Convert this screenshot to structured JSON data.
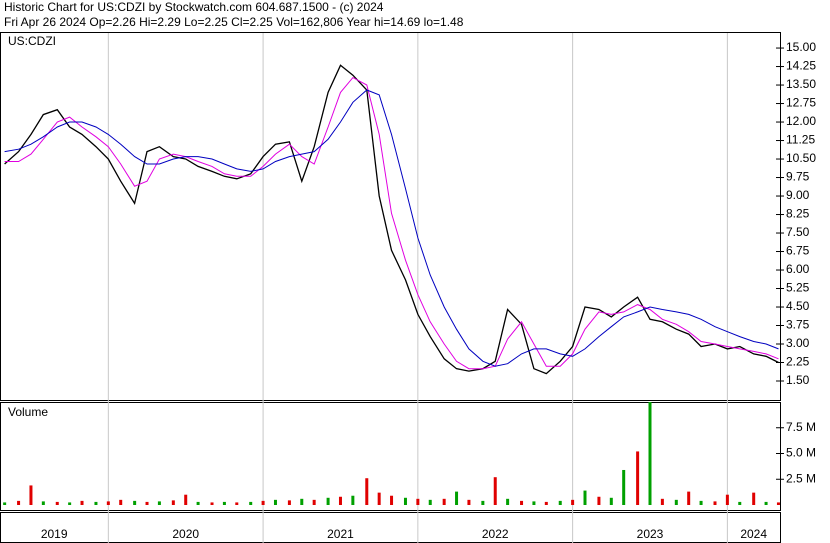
{
  "header": {
    "title": "Historic Chart for US:CDZI by Stockwatch.com 604.687.1500 - (c) 2024",
    "quote": "Fri Apr 26 2024   Op=2.26   Hi=2.29   Lo=2.25   Cl=2.25   Vol=162,806   Year hi=14.69   lo=1.48"
  },
  "chart_data": [
    {
      "type": "line",
      "title": "US:CDZI",
      "x": [
        2019.33,
        2019.42,
        2019.5,
        2019.58,
        2019.67,
        2019.75,
        2019.83,
        2019.92,
        2020.0,
        2020.08,
        2020.17,
        2020.25,
        2020.33,
        2020.42,
        2020.5,
        2020.58,
        2020.67,
        2020.75,
        2020.83,
        2020.92,
        2021.0,
        2021.08,
        2021.17,
        2021.25,
        2021.33,
        2021.42,
        2021.5,
        2021.58,
        2021.67,
        2021.75,
        2021.83,
        2021.92,
        2022.0,
        2022.08,
        2022.17,
        2022.25,
        2022.33,
        2022.42,
        2022.5,
        2022.58,
        2022.67,
        2022.75,
        2022.83,
        2022.92,
        2023.0,
        2023.08,
        2023.17,
        2023.25,
        2023.33,
        2023.42,
        2023.5,
        2023.58,
        2023.67,
        2023.75,
        2023.83,
        2023.92,
        2024.0,
        2024.08,
        2024.17,
        2024.25,
        2024.33
      ],
      "series": [
        {
          "color": "#000000",
          "values": [
            10.3,
            10.8,
            11.5,
            12.3,
            12.5,
            11.8,
            11.5,
            11.0,
            10.5,
            9.6,
            8.7,
            10.8,
            11.0,
            10.6,
            10.5,
            10.2,
            10.0,
            9.8,
            9.7,
            9.9,
            10.6,
            11.1,
            11.2,
            9.6,
            11.0,
            13.2,
            14.3,
            13.9,
            13.3,
            9.0,
            6.8,
            5.6,
            4.2,
            3.3,
            2.4,
            2.0,
            1.9,
            2.0,
            2.3,
            4.4,
            3.8,
            2.0,
            1.8,
            2.3,
            2.9,
            4.5,
            4.4,
            4.1,
            4.5,
            4.9,
            4.0,
            3.9,
            3.6,
            3.4,
            2.9,
            3.0,
            2.8,
            2.9,
            2.6,
            2.5,
            2.25
          ]
        },
        {
          "color": "#e000e0",
          "values": [
            10.4,
            10.4,
            10.7,
            11.3,
            12.0,
            12.2,
            11.8,
            11.4,
            11.0,
            10.3,
            9.4,
            9.6,
            10.5,
            10.7,
            10.6,
            10.4,
            10.2,
            9.9,
            9.8,
            9.8,
            10.2,
            10.7,
            11.1,
            10.6,
            10.3,
            11.8,
            13.2,
            13.8,
            13.5,
            11.5,
            8.3,
            6.4,
            5.0,
            3.9,
            3.0,
            2.3,
            2.0,
            2.0,
            2.1,
            3.2,
            3.9,
            3.0,
            2.1,
            2.1,
            2.6,
            3.6,
            4.3,
            4.2,
            4.3,
            4.6,
            4.4,
            4.0,
            3.8,
            3.5,
            3.1,
            3.0,
            2.9,
            2.8,
            2.7,
            2.6,
            2.4
          ]
        },
        {
          "color": "#0000c0",
          "values": [
            10.8,
            10.9,
            11.1,
            11.4,
            11.8,
            12.0,
            12.0,
            11.8,
            11.5,
            11.1,
            10.6,
            10.3,
            10.3,
            10.5,
            10.6,
            10.6,
            10.5,
            10.3,
            10.1,
            10.0,
            10.1,
            10.4,
            10.6,
            10.7,
            10.8,
            11.3,
            12.0,
            12.8,
            13.3,
            13.1,
            11.5,
            9.3,
            7.3,
            5.8,
            4.5,
            3.6,
            2.8,
            2.3,
            2.1,
            2.2,
            2.6,
            2.8,
            2.8,
            2.6,
            2.5,
            2.8,
            3.3,
            3.7,
            4.1,
            4.3,
            4.5,
            4.4,
            4.3,
            4.2,
            4.0,
            3.7,
            3.5,
            3.3,
            3.1,
            3.0,
            2.8
          ]
        }
      ],
      "xlim": [
        2019.3,
        2024.34
      ],
      "xticks": [
        {
          "value": 2019,
          "label": "2019"
        },
        {
          "value": 2020,
          "label": "2020"
        },
        {
          "value": 2021,
          "label": "2021"
        },
        {
          "value": 2022,
          "label": "2022"
        },
        {
          "value": 2023,
          "label": "2023"
        },
        {
          "value": 2024,
          "label": "2024"
        }
      ],
      "ylim": [
        0.73,
        15.61
      ],
      "yticks": [
        {
          "value": 1.5,
          "label": "1.50"
        },
        {
          "value": 2.25,
          "label": "2.25"
        },
        {
          "value": 3,
          "label": "3.00"
        },
        {
          "value": 3.75,
          "label": "3.75"
        },
        {
          "value": 4.5,
          "label": "4.50"
        },
        {
          "value": 5.25,
          "label": "5.25"
        },
        {
          "value": 6,
          "label": "6.00"
        },
        {
          "value": 6.75,
          "label": "6.75"
        },
        {
          "value": 7.5,
          "label": "7.50"
        },
        {
          "value": 8.25,
          "label": "8.25"
        },
        {
          "value": 9,
          "label": "9.00"
        },
        {
          "value": 9.75,
          "label": "9.75"
        },
        {
          "value": 10.5,
          "label": "10.50"
        },
        {
          "value": 11.25,
          "label": "11.25"
        },
        {
          "value": 12,
          "label": "12.00"
        },
        {
          "value": 12.75,
          "label": "12.75"
        },
        {
          "value": 13.5,
          "label": "13.50"
        },
        {
          "value": 14.25,
          "label": "14.25"
        },
        {
          "value": 15,
          "label": "15.00"
        }
      ]
    },
    {
      "type": "bar",
      "title": "Volume",
      "x": [
        2019.33,
        2019.42,
        2019.5,
        2019.58,
        2019.67,
        2019.75,
        2019.83,
        2019.92,
        2020.0,
        2020.08,
        2020.17,
        2020.25,
        2020.33,
        2020.42,
        2020.5,
        2020.58,
        2020.67,
        2020.75,
        2020.83,
        2020.92,
        2021.0,
        2021.08,
        2021.17,
        2021.25,
        2021.33,
        2021.42,
        2021.5,
        2021.58,
        2021.67,
        2021.75,
        2021.83,
        2021.92,
        2022.0,
        2022.08,
        2022.17,
        2022.25,
        2022.33,
        2022.42,
        2022.5,
        2022.58,
        2022.67,
        2022.75,
        2022.83,
        2022.92,
        2023.0,
        2023.08,
        2023.17,
        2023.25,
        2023.33,
        2023.42,
        2023.5,
        2023.58,
        2023.67,
        2023.75,
        2023.83,
        2023.92,
        2024.0,
        2024.08,
        2024.17,
        2024.25,
        2024.33
      ],
      "values": [
        250000,
        400000,
        1900000,
        350000,
        300000,
        250000,
        400000,
        300000,
        350000,
        500000,
        400000,
        300000,
        350000,
        450000,
        1000000,
        300000,
        250000,
        300000,
        250000,
        300000,
        400000,
        500000,
        450000,
        600000,
        500000,
        700000,
        800000,
        900000,
        2600000,
        1200000,
        900000,
        700000,
        600000,
        500000,
        600000,
        1300000,
        500000,
        400000,
        2700000,
        600000,
        400000,
        350000,
        300000,
        400000,
        500000,
        1400000,
        800000,
        700000,
        3400000,
        5200000,
        10000000,
        600000,
        500000,
        1300000,
        400000,
        350000,
        1000000,
        300000,
        1200000,
        300000,
        250000
      ],
      "colors": [
        "#00a000",
        "#e00000",
        "#e00000",
        "#00a000",
        "#e00000",
        "#00a000",
        "#e00000",
        "#00a000",
        "#e00000",
        "#e00000",
        "#00a000",
        "#e00000",
        "#00a000",
        "#e00000",
        "#e00000",
        "#00a000",
        "#e00000",
        "#00a000",
        "#e00000",
        "#00a000",
        "#e00000",
        "#00a000",
        "#e00000",
        "#00a000",
        "#e00000",
        "#00a000",
        "#e00000",
        "#00a000",
        "#e00000",
        "#e00000",
        "#e00000",
        "#00a000",
        "#e00000",
        "#00a000",
        "#e00000",
        "#00a000",
        "#e00000",
        "#00a000",
        "#e00000",
        "#00a000",
        "#e00000",
        "#00a000",
        "#e00000",
        "#00a000",
        "#e00000",
        "#00a000",
        "#e00000",
        "#00a000",
        "#00a000",
        "#e00000",
        "#00a000",
        "#e00000",
        "#00a000",
        "#e00000",
        "#00a000",
        "#e00000",
        "#e00000",
        "#00a000",
        "#e00000",
        "#00a000",
        "#e00000"
      ],
      "xlim": [
        2019.3,
        2024.34
      ],
      "ylim": [
        0,
        10000000
      ],
      "yticks": [
        {
          "value": 2500000,
          "label": "2.5 M"
        },
        {
          "value": 5000000,
          "label": "5.0 M"
        },
        {
          "value": 7500000,
          "label": "7.5 M"
        }
      ]
    }
  ]
}
